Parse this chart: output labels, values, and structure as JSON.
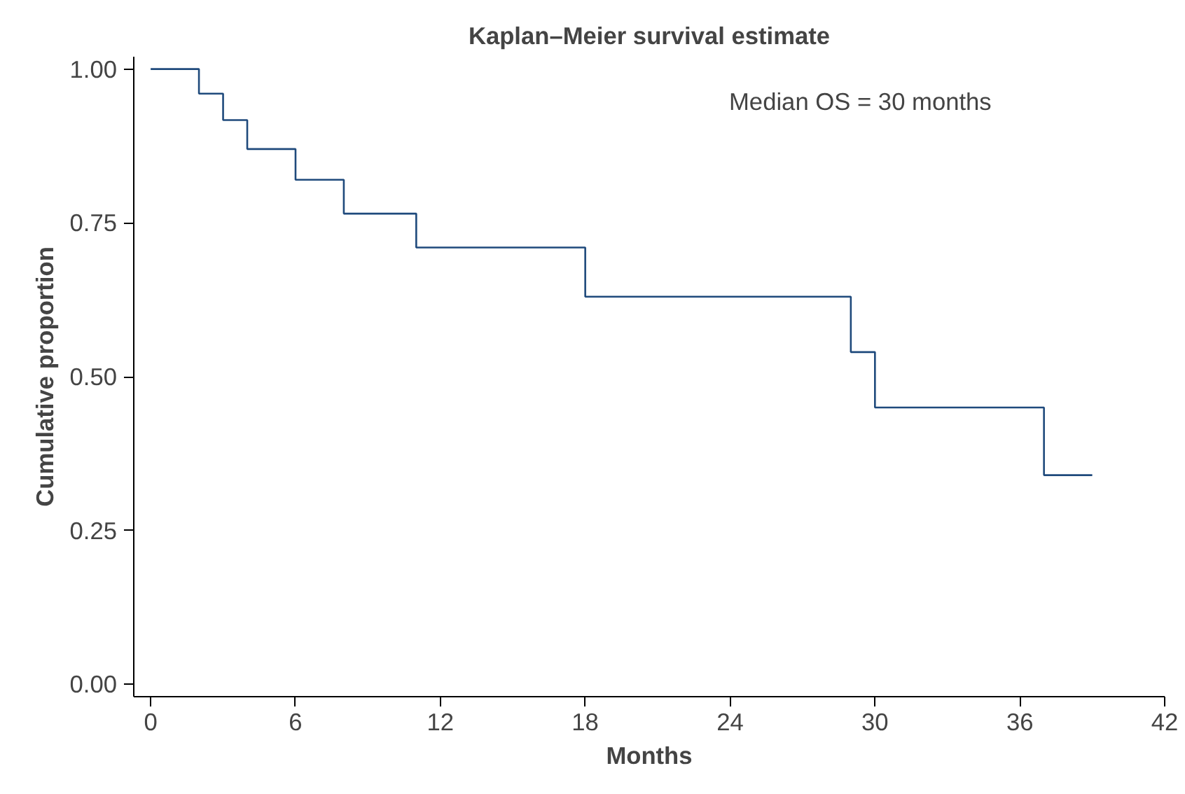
{
  "chart_data": {
    "type": "step",
    "title": "Kaplan–Meier survival estimate",
    "xlabel": "Months",
    "ylabel": "Cumulative proportion",
    "series": [
      {
        "color": "#1f4a7c",
        "x": [
          0,
          2,
          3,
          4,
          6,
          8,
          11,
          18,
          29,
          30,
          37,
          39
        ],
        "values": [
          1.0,
          0.96,
          0.917,
          0.87,
          0.82,
          0.765,
          0.71,
          0.63,
          0.54,
          0.45,
          0.34,
          0.34
        ]
      }
    ],
    "xlim": [
      -0.7,
      42
    ],
    "ylim": [
      -0.02,
      1.02
    ],
    "xticks": [
      0,
      6,
      12,
      18,
      24,
      30,
      36,
      42
    ],
    "yticks": [
      {
        "value": 0,
        "label": "0.00"
      },
      {
        "value": 0.25,
        "label": "0.25"
      },
      {
        "value": 0.5,
        "label": "0.50"
      },
      {
        "value": 0.75,
        "label": "0.75"
      },
      {
        "value": 1,
        "label": "1.00"
      }
    ],
    "annotations": [
      "Median OS = 30 months"
    ],
    "grid": false
  }
}
